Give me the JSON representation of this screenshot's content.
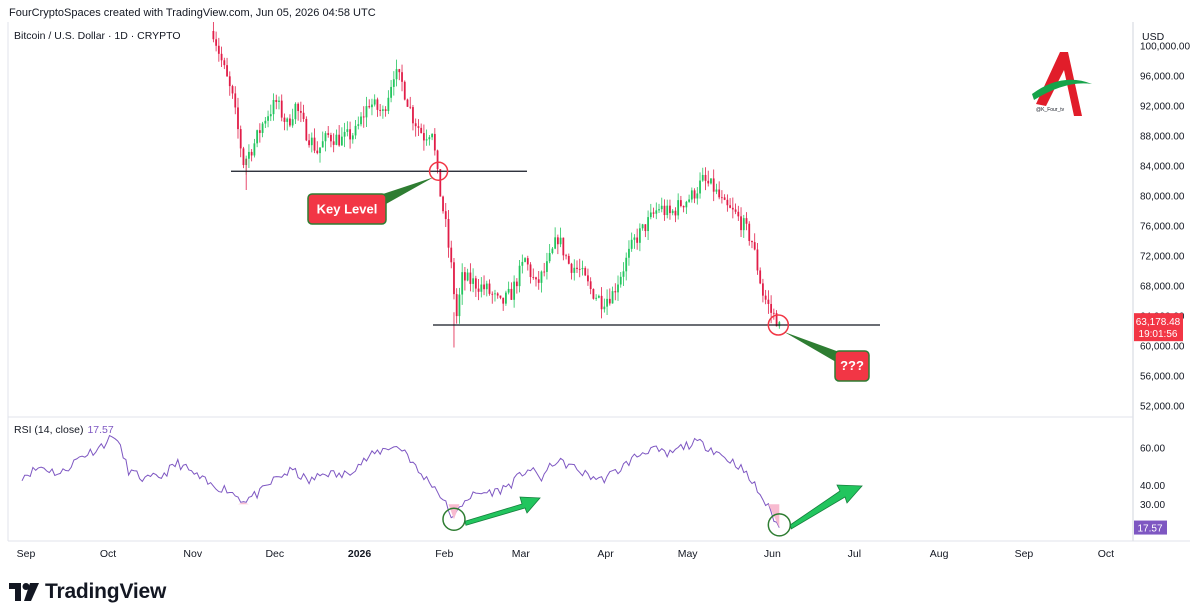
{
  "header": {
    "attribution": "FourCryptoSpaces created with TradingView.com, Jun 05, 2026 04:58 UTC",
    "symbol": "Bitcoin / U.S. Dollar · 1D · CRYPTO",
    "currency": "USD"
  },
  "watermark": {
    "handle": "@K_Four_tv"
  },
  "price_badge": {
    "price": "63,178.48",
    "countdown": "19:01:56",
    "color": "#f23645"
  },
  "rsi_badge": {
    "value": "17.57",
    "color": "#7e57c2"
  },
  "rsi_label": {
    "name": "RSI (14, close)",
    "value": "17.57"
  },
  "annotations": {
    "key_level": "Key Level",
    "question": "???"
  },
  "brand": {
    "name": "TradingView",
    "icon": "tradingview-logo-icon"
  },
  "colors": {
    "up": "#22c55e",
    "down": "#e11d48",
    "rsi_line": "#7e57c2",
    "callout": "#f23645",
    "arrow": "#22c55e"
  },
  "chart_data": [
    {
      "type": "candlestick",
      "title": "Bitcoin / U.S. Dollar · 1D · CRYPTO",
      "x_ticks": [
        "Sep",
        "Oct",
        "Nov",
        "Dec",
        "2026",
        "Feb",
        "Mar",
        "Apr",
        "May",
        "Jun",
        "Jul",
        "Aug",
        "Sep",
        "Oct"
      ],
      "y_ticks": [
        "100,000.00",
        "96,000.00",
        "92,000.00",
        "88,000.00",
        "84,000.00",
        "80,000.00",
        "76,000.00",
        "72,000.00",
        "68,000.00",
        "64,000.00",
        "60,000.00",
        "56,000.00",
        "52,000.00"
      ],
      "ylim": [
        50000,
        101500
      ],
      "key_levels": [
        83300,
        62800
      ],
      "last_price": 63178.48,
      "anchors": [
        [
          "2025-11-10",
          102000
        ],
        [
          "2025-11-13",
          98000
        ],
        [
          "2025-11-17",
          93000
        ],
        [
          "2025-11-21",
          84500
        ],
        [
          "2025-11-25",
          87000
        ],
        [
          "2025-11-29",
          90500
        ],
        [
          "2025-12-03",
          92500
        ],
        [
          "2025-12-07",
          89500
        ],
        [
          "2025-12-10",
          92000
        ],
        [
          "2025-12-14",
          88500
        ],
        [
          "2025-12-18",
          86000
        ],
        [
          "2025-12-22",
          88000
        ],
        [
          "2025-12-27",
          87500
        ],
        [
          "2026-01-01",
          88500
        ],
        [
          "2026-01-06",
          92500
        ],
        [
          "2026-01-11",
          91000
        ],
        [
          "2026-01-15",
          96500
        ],
        [
          "2026-01-18",
          95000
        ],
        [
          "2026-01-22",
          90500
        ],
        [
          "2026-01-26",
          88000
        ],
        [
          "2026-01-29",
          89000
        ],
        [
          "2026-01-31",
          82500
        ],
        [
          "2026-02-03",
          76000
        ],
        [
          "2026-02-05",
          70500
        ],
        [
          "2026-02-07",
          64000
        ],
        [
          "2026-02-09",
          69000
        ],
        [
          "2026-02-13",
          68500
        ],
        [
          "2026-02-18",
          67500
        ],
        [
          "2026-02-23",
          65500
        ],
        [
          "2026-02-27",
          67000
        ],
        [
          "2026-03-04",
          71500
        ],
        [
          "2026-03-08",
          68000
        ],
        [
          "2026-03-12",
          70500
        ],
        [
          "2026-03-16",
          74500
        ],
        [
          "2026-03-20",
          71000
        ],
        [
          "2026-03-24",
          70000
        ],
        [
          "2026-03-28",
          67500
        ],
        [
          "2026-04-01",
          66000
        ],
        [
          "2026-04-05",
          67000
        ],
        [
          "2026-04-09",
          70500
        ],
        [
          "2026-04-13",
          74000
        ],
        [
          "2026-04-18",
          76500
        ],
        [
          "2026-04-22",
          78500
        ],
        [
          "2026-04-26",
          77500
        ],
        [
          "2026-04-30",
          79000
        ],
        [
          "2026-05-04",
          80000
        ],
        [
          "2026-05-08",
          82000
        ],
        [
          "2026-05-12",
          81000
        ],
        [
          "2026-05-16",
          78500
        ],
        [
          "2026-05-20",
          77500
        ],
        [
          "2026-05-23",
          76000
        ],
        [
          "2026-05-26",
          74000
        ],
        [
          "2026-05-28",
          70500
        ],
        [
          "2026-05-30",
          67000
        ],
        [
          "2026-06-02",
          64500
        ],
        [
          "2026-06-05",
          63178
        ]
      ]
    },
    {
      "type": "line",
      "series": [
        {
          "name": "RSI (14, close)",
          "current": 17.57
        }
      ],
      "y_ticks": [
        "60.00",
        "40.00",
        "30.00"
      ],
      "ylim": [
        10,
        70
      ],
      "anchors": [
        [
          "2025-09-01",
          45
        ],
        [
          "2025-09-08",
          50
        ],
        [
          "2025-09-15",
          46
        ],
        [
          "2025-09-22",
          55
        ],
        [
          "2025-09-29",
          60
        ],
        [
          "2025-10-05",
          67
        ],
        [
          "2025-10-10",
          48
        ],
        [
          "2025-10-16",
          43
        ],
        [
          "2025-10-22",
          45
        ],
        [
          "2025-10-28",
          52
        ],
        [
          "2025-11-03",
          46
        ],
        [
          "2025-11-09",
          40
        ],
        [
          "2025-11-15",
          38
        ],
        [
          "2025-11-21",
          32
        ],
        [
          "2025-11-27",
          36
        ],
        [
          "2025-12-03",
          44
        ],
        [
          "2025-12-09",
          48
        ],
        [
          "2025-12-15",
          42
        ],
        [
          "2025-12-21",
          47
        ],
        [
          "2025-12-27",
          45
        ],
        [
          "2026-01-02",
          51
        ],
        [
          "2026-01-08",
          57
        ],
        [
          "2026-01-14",
          61
        ],
        [
          "2026-01-19",
          59
        ],
        [
          "2026-01-24",
          47
        ],
        [
          "2026-01-29",
          41
        ],
        [
          "2026-02-01",
          35
        ],
        [
          "2026-02-04",
          27
        ],
        [
          "2026-02-06",
          22
        ],
        [
          "2026-02-10",
          33
        ],
        [
          "2026-02-16",
          36
        ],
        [
          "2026-02-22",
          37
        ],
        [
          "2026-02-27",
          41
        ],
        [
          "2026-03-05",
          49
        ],
        [
          "2026-03-10",
          44
        ],
        [
          "2026-03-15",
          53
        ],
        [
          "2026-03-20",
          51
        ],
        [
          "2026-03-26",
          46
        ],
        [
          "2026-04-01",
          43
        ],
        [
          "2026-04-07",
          48
        ],
        [
          "2026-04-13",
          55
        ],
        [
          "2026-04-19",
          60
        ],
        [
          "2026-04-25",
          56
        ],
        [
          "2026-05-01",
          61
        ],
        [
          "2026-05-06",
          63
        ],
        [
          "2026-05-11",
          60
        ],
        [
          "2026-05-16",
          55
        ],
        [
          "2026-05-21",
          51
        ],
        [
          "2026-05-27",
          40
        ],
        [
          "2026-06-01",
          28
        ],
        [
          "2026-06-05",
          17.57
        ]
      ]
    }
  ]
}
